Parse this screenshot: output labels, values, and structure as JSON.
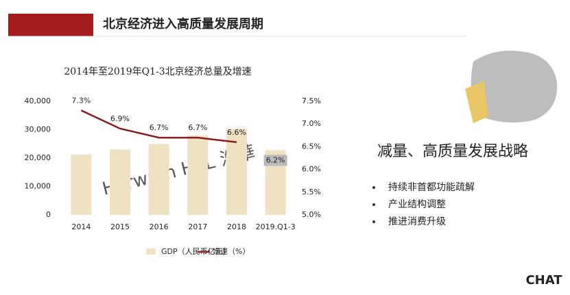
{
  "header": {
    "title": "北京经济进入高质量发展周期"
  },
  "chart_data": {
    "type": "bar-line",
    "title": "2014年至2019年Q1-3北京经济总量及增速",
    "categories": [
      "2014",
      "2015",
      "2016",
      "2017",
      "2018",
      "2019.Q1-3"
    ],
    "series": [
      {
        "name": "GDP（人民币亿元）",
        "type": "bar",
        "color": "#efe2c2",
        "values": [
          21300,
          23000,
          25000,
          28000,
          30300,
          22800
        ]
      },
      {
        "name": "增速（%）",
        "type": "line",
        "axis": "y2",
        "color": "#8b1a1a",
        "values": [
          7.3,
          6.9,
          6.7,
          6.7,
          6.6,
          6.2
        ],
        "value_labels": [
          "7.3%",
          "6.9%",
          "6.7%",
          "6.7%",
          "6.6%",
          "6.2%"
        ]
      }
    ],
    "ylim": [
      0,
      40000
    ],
    "yticks": [
      0,
      {
        "value": 10000,
        "label": "10,000"
      },
      {
        "value": 20000,
        "label": "20,000"
      },
      {
        "value": 30000,
        "label": "30,000"
      },
      {
        "value": 40000,
        "label": "40,000"
      }
    ],
    "y2lim": [
      5.0,
      7.5
    ],
    "y2ticks": [
      {
        "value": 5.0,
        "label": "5.0%"
      },
      {
        "value": 5.5,
        "label": "5.5%"
      },
      {
        "value": 6.0,
        "label": "6.0%"
      },
      {
        "value": 6.5,
        "label": "6.5%"
      },
      {
        "value": 7.0,
        "label": "7.0%"
      },
      {
        "value": 7.5,
        "label": "7.5%"
      }
    ],
    "watermark": "Horwath HTL 浩華"
  },
  "side": {
    "heading": "减量、高质量发展战略",
    "bullets": [
      "持续非首都功能疏解",
      "产业结构调整",
      "推进消费升级"
    ]
  },
  "logo": "CHAT"
}
